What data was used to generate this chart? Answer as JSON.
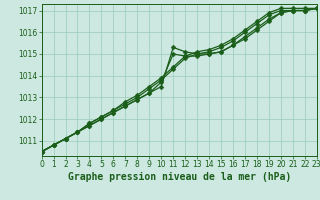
{
  "title": "Graphe pression niveau de la mer (hPa)",
  "bg_color": "#cce8e0",
  "grid_color": "#99ccbb",
  "line_color": "#1a5e1a",
  "marker": "D",
  "xlim": [
    0,
    23
  ],
  "ylim": [
    1010.3,
    1017.3
  ],
  "yticks": [
    1011,
    1012,
    1013,
    1014,
    1015,
    1016,
    1017
  ],
  "xticks": [
    0,
    1,
    2,
    3,
    4,
    5,
    6,
    7,
    8,
    9,
    10,
    11,
    12,
    13,
    14,
    15,
    16,
    17,
    18,
    19,
    20,
    21,
    22,
    23
  ],
  "curves": [
    [
      1010.5,
      1010.8,
      1011.1,
      1011.4,
      1011.7,
      1012.0,
      1012.3,
      1012.6,
      1012.9,
      1013.2,
      1013.5,
      1015.3,
      1015.1,
      1015.0,
      1015.0,
      1015.1,
      1015.4,
      1015.8,
      1016.2,
      1016.6,
      1016.9,
      1017.0,
      1017.0,
      1017.1
    ],
    [
      1010.5,
      1010.8,
      1011.1,
      1011.4,
      1011.7,
      1012.0,
      1012.3,
      1012.6,
      1012.9,
      1013.2,
      1013.7,
      1015.0,
      1014.9,
      1014.9,
      1015.0,
      1015.1,
      1015.4,
      1015.7,
      1016.1,
      1016.5,
      1016.9,
      1017.0,
      1017.0,
      1017.1
    ],
    [
      1010.5,
      1010.8,
      1011.1,
      1011.4,
      1011.8,
      1012.1,
      1012.4,
      1012.7,
      1013.0,
      1013.4,
      1013.8,
      1014.3,
      1014.8,
      1015.0,
      1015.1,
      1015.3,
      1015.6,
      1016.0,
      1016.4,
      1016.8,
      1017.0,
      1017.0,
      1017.0,
      1017.1
    ],
    [
      1010.5,
      1010.8,
      1011.1,
      1011.4,
      1011.8,
      1012.1,
      1012.4,
      1012.8,
      1013.1,
      1013.5,
      1013.9,
      1014.4,
      1014.9,
      1015.1,
      1015.2,
      1015.4,
      1015.7,
      1016.1,
      1016.5,
      1016.9,
      1017.1,
      1017.1,
      1017.1,
      1017.1
    ]
  ]
}
